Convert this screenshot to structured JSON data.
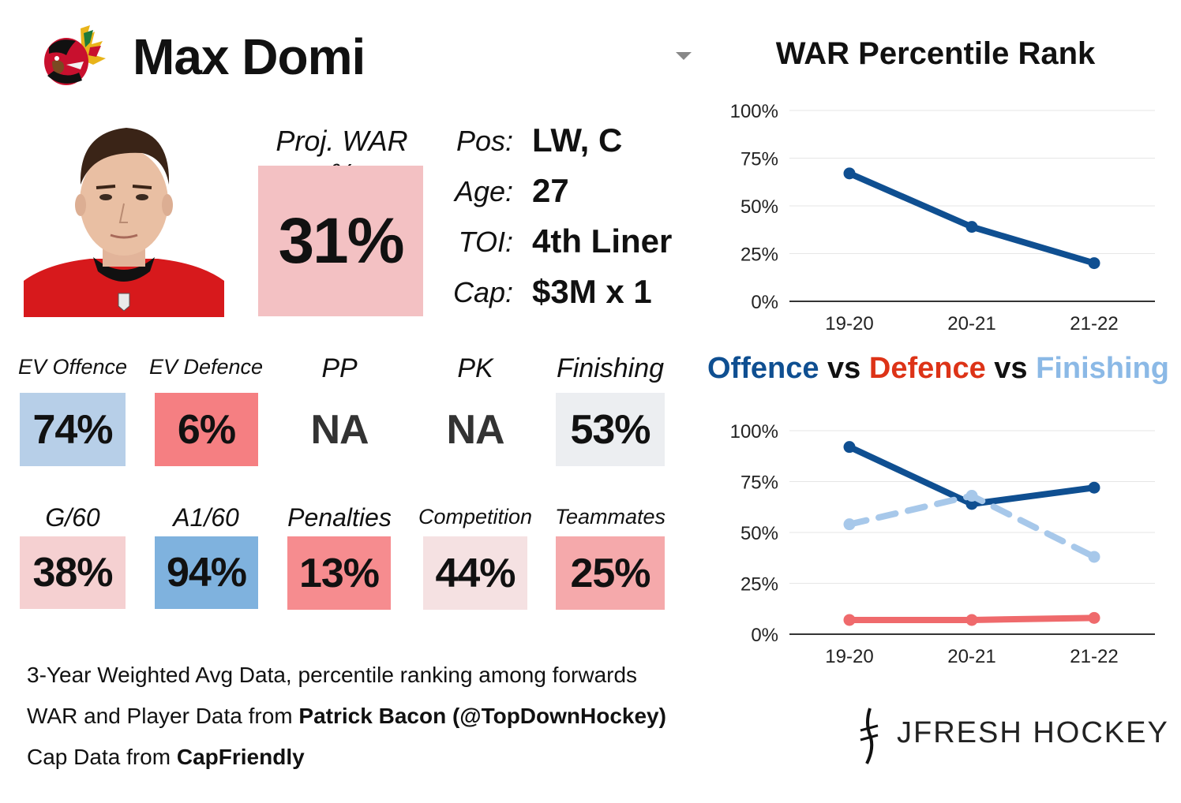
{
  "player": {
    "name": "Max Domi"
  },
  "proj_war": {
    "label": "Proj. WAR %",
    "value": "31%",
    "color": "#f3c1c3"
  },
  "info": [
    {
      "label": "Pos:",
      "value": "LW, C"
    },
    {
      "label": "Age:",
      "value": "27"
    },
    {
      "label": "TOI:",
      "value": "4th Liner"
    },
    {
      "label": "Cap:",
      "value": "$3M x 1"
    }
  ],
  "stats_row1": [
    {
      "label": "EV Offence",
      "value": "74%",
      "color": "#b7cfe8"
    },
    {
      "label": "EV Defence",
      "value": "6%",
      "color": "#f57f82"
    },
    {
      "label": "PP",
      "value": "NA",
      "color": "#ffffff"
    },
    {
      "label": "PK",
      "value": "NA",
      "color": "#ffffff"
    },
    {
      "label": "Finishing",
      "value": "53%",
      "color": "#eceef1"
    }
  ],
  "stats_row2": [
    {
      "label": "G/60",
      "value": "38%",
      "color": "#f5d0d1"
    },
    {
      "label": "A1/60",
      "value": "94%",
      "color": "#7fb2de"
    },
    {
      "label": "Penalties",
      "value": "13%",
      "color": "#f68c8f"
    },
    {
      "label": "Competition",
      "value": "44%",
      "color": "#f5e1e2"
    },
    {
      "label": "Teammates",
      "value": "25%",
      "color": "#f5a9ab"
    }
  ],
  "footer": {
    "line1": "3-Year Weighted Avg Data, percentile ranking among forwards",
    "line2_prefix": "WAR and Player Data from ",
    "line2_bold": "Patrick Bacon (@TopDownHockey)",
    "line3_prefix": "Cap Data from ",
    "line3_bold": "CapFriendly"
  },
  "branding": {
    "text": "JFRESH HOCKEY"
  },
  "chart2_title": {
    "part1": "Offence",
    "sep1": " vs ",
    "part2": "Defence",
    "sep2": " vs ",
    "part3": "Finishing",
    "colors": {
      "offence": "#0f4f91",
      "defence": "#dd3317",
      "finishing": "#8bb9e6",
      "vs": "#111111"
    }
  },
  "chart_data": [
    {
      "type": "line",
      "title": "WAR Percentile Rank",
      "categories": [
        "19-20",
        "20-21",
        "21-22"
      ],
      "yticks": [
        "0%",
        "25%",
        "50%",
        "75%",
        "100%"
      ],
      "ylim": [
        0,
        100
      ],
      "grid": true,
      "series": [
        {
          "values": [
            67,
            39,
            20
          ],
          "color": "#0f4f91",
          "dashed": false
        }
      ]
    },
    {
      "type": "line",
      "categories": [
        "19-20",
        "20-21",
        "21-22"
      ],
      "yticks": [
        "0%",
        "25%",
        "50%",
        "75%",
        "100%"
      ],
      "ylim": [
        0,
        100
      ],
      "grid": true,
      "series": [
        {
          "name": "Offence",
          "values": [
            92,
            64,
            72
          ],
          "color": "#0f4f91",
          "dashed": false
        },
        {
          "name": "Defence",
          "values": [
            7,
            7,
            8
          ],
          "color": "#ef6a6c",
          "dashed": false
        },
        {
          "name": "Finishing",
          "values": [
            54,
            68,
            38
          ],
          "color": "#a7c8ea",
          "dashed": true
        }
      ]
    }
  ]
}
